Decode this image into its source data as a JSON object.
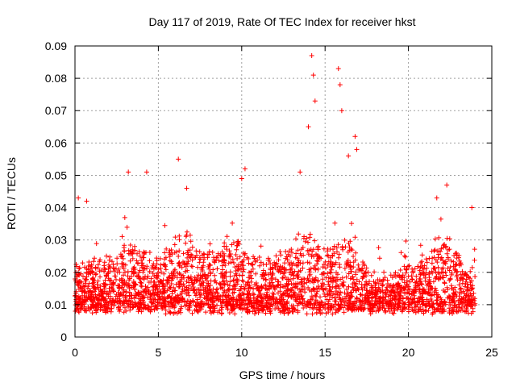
{
  "chart_data": {
    "type": "scatter",
    "title": "Day 117 of 2019, Rate Of TEC Index for receiver hkst",
    "xlabel": "GPS time / hours",
    "ylabel": "ROTI / TECUs",
    "xlim": [
      0,
      25
    ],
    "ylim": [
      0,
      0.09
    ],
    "xticks": [
      0,
      5,
      10,
      15,
      20,
      25
    ],
    "xtick_labels": [
      "0",
      "5",
      "10",
      "15",
      "20",
      "25"
    ],
    "yticks": [
      0,
      0.01,
      0.02,
      0.03,
      0.04,
      0.05,
      0.06,
      0.07,
      0.08,
      0.09
    ],
    "ytick_labels": [
      "0",
      "0.01",
      "0.02",
      "0.03",
      "0.04",
      "0.05",
      "0.06",
      "0.07",
      "0.08",
      "0.09"
    ],
    "grid": true,
    "marker": "+",
    "color": "#ff0000",
    "series": [
      {
        "name": "ROTI",
        "x_range": [
          0,
          24
        ],
        "baseline_band": [
          0.005,
          0.025
        ],
        "notable_points": [
          {
            "x": 0.2,
            "y": 0.043
          },
          {
            "x": 0.7,
            "y": 0.042
          },
          {
            "x": 3.2,
            "y": 0.051
          },
          {
            "x": 4.3,
            "y": 0.051
          },
          {
            "x": 6.2,
            "y": 0.055
          },
          {
            "x": 6.7,
            "y": 0.046
          },
          {
            "x": 10.2,
            "y": 0.052
          },
          {
            "x": 10.0,
            "y": 0.049
          },
          {
            "x": 13.5,
            "y": 0.051
          },
          {
            "x": 14.0,
            "y": 0.065
          },
          {
            "x": 14.2,
            "y": 0.087
          },
          {
            "x": 14.3,
            "y": 0.081
          },
          {
            "x": 14.4,
            "y": 0.073
          },
          {
            "x": 15.8,
            "y": 0.083
          },
          {
            "x": 15.9,
            "y": 0.078
          },
          {
            "x": 16.0,
            "y": 0.07
          },
          {
            "x": 16.4,
            "y": 0.056
          },
          {
            "x": 16.8,
            "y": 0.062
          },
          {
            "x": 16.9,
            "y": 0.058
          },
          {
            "x": 21.7,
            "y": 0.043
          },
          {
            "x": 22.3,
            "y": 0.047
          },
          {
            "x": 23.8,
            "y": 0.04
          }
        ]
      }
    ]
  }
}
